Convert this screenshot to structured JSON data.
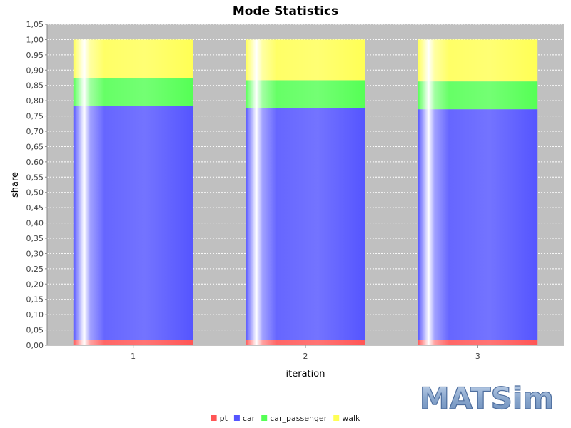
{
  "chart_data": {
    "type": "bar",
    "stacked": true,
    "title": "Mode Statistics",
    "xlabel": "iteration",
    "ylabel": "share",
    "categories": [
      "1",
      "2",
      "3"
    ],
    "ylim": [
      0,
      1.05
    ],
    "ytick_step": 0.05,
    "ytick_labels": [
      "0,00",
      "0,05",
      "0,10",
      "0,15",
      "0,20",
      "0,25",
      "0,30",
      "0,35",
      "0,40",
      "0,45",
      "0,50",
      "0,55",
      "0,60",
      "0,65",
      "0,70",
      "0,75",
      "0,80",
      "0,85",
      "0,90",
      "0,95",
      "1,00",
      "1,05"
    ],
    "grid": true,
    "background": "#c0c0c0",
    "legend_position": "bottom",
    "series": [
      {
        "name": "pt",
        "color": "#ff5555",
        "values": [
          0.018,
          0.018,
          0.018
        ]
      },
      {
        "name": "car",
        "color": "#5555ff",
        "values": [
          0.765,
          0.759,
          0.754
        ]
      },
      {
        "name": "car_passenger",
        "color": "#55ff55",
        "values": [
          0.09,
          0.09,
          0.091
        ]
      },
      {
        "name": "walk",
        "color": "#ffff55",
        "values": [
          0.127,
          0.133,
          0.137
        ]
      }
    ]
  },
  "logo": {
    "text": "MATSim",
    "color": "#7a9cc6"
  }
}
